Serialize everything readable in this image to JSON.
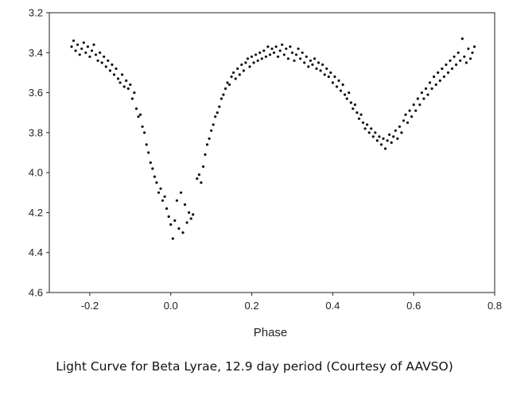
{
  "caption": "Light Curve for Beta Lyrae, 12.9 day period (Courtesy of AAVSO)",
  "chart_data": {
    "type": "scatter",
    "title": "",
    "xlabel": "Phase",
    "ylabel": "",
    "xlim": [
      -0.3,
      0.8
    ],
    "ylim": [
      3.2,
      4.6
    ],
    "y_inverted": true,
    "grid": false,
    "x_ticks": [
      -0.2,
      0.0,
      0.2,
      0.4,
      0.6,
      0.8
    ],
    "x_tick_labels": [
      "-0.2",
      "0.0",
      "0.2",
      "0.4",
      "0.6",
      "0.8"
    ],
    "y_ticks": [
      3.2,
      3.4,
      3.6,
      3.8,
      4.0,
      4.2,
      4.4,
      4.6
    ],
    "y_tick_labels": [
      "3.2",
      "3.4",
      "3.6",
      "3.8",
      "4.0",
      "4.2",
      "4.4",
      "4.6"
    ],
    "marker_color": "#111111",
    "points": [
      [
        -0.245,
        3.37
      ],
      [
        -0.24,
        3.34
      ],
      [
        -0.235,
        3.39
      ],
      [
        -0.23,
        3.36
      ],
      [
        -0.225,
        3.41
      ],
      [
        -0.22,
        3.38
      ],
      [
        -0.215,
        3.35
      ],
      [
        -0.21,
        3.4
      ],
      [
        -0.205,
        3.37
      ],
      [
        -0.2,
        3.42
      ],
      [
        -0.195,
        3.39
      ],
      [
        -0.19,
        3.36
      ],
      [
        -0.185,
        3.41
      ],
      [
        -0.18,
        3.44
      ],
      [
        -0.175,
        3.4
      ],
      [
        -0.17,
        3.45
      ],
      [
        -0.165,
        3.42
      ],
      [
        -0.16,
        3.47
      ],
      [
        -0.155,
        3.44
      ],
      [
        -0.15,
        3.49
      ],
      [
        -0.145,
        3.46
      ],
      [
        -0.14,
        3.51
      ],
      [
        -0.135,
        3.48
      ],
      [
        -0.13,
        3.53
      ],
      [
        -0.125,
        3.55
      ],
      [
        -0.12,
        3.51
      ],
      [
        -0.115,
        3.57
      ],
      [
        -0.11,
        3.54
      ],
      [
        -0.105,
        3.58
      ],
      [
        -0.1,
        3.56
      ],
      [
        -0.095,
        3.63
      ],
      [
        -0.09,
        3.6
      ],
      [
        -0.085,
        3.68
      ],
      [
        -0.08,
        3.72
      ],
      [
        -0.075,
        3.71
      ],
      [
        -0.07,
        3.77
      ],
      [
        -0.065,
        3.8
      ],
      [
        -0.06,
        3.86
      ],
      [
        -0.055,
        3.9
      ],
      [
        -0.05,
        3.95
      ],
      [
        -0.045,
        3.98
      ],
      [
        -0.04,
        4.02
      ],
      [
        -0.035,
        4.05
      ],
      [
        -0.03,
        4.1
      ],
      [
        -0.025,
        4.08
      ],
      [
        -0.02,
        4.14
      ],
      [
        -0.015,
        4.12
      ],
      [
        -0.01,
        4.18
      ],
      [
        -0.005,
        4.22
      ],
      [
        0.0,
        4.26
      ],
      [
        0.005,
        4.33
      ],
      [
        0.01,
        4.24
      ],
      [
        0.015,
        4.14
      ],
      [
        0.02,
        4.28
      ],
      [
        0.025,
        4.1
      ],
      [
        0.03,
        4.3
      ],
      [
        0.035,
        4.16
      ],
      [
        0.04,
        4.25
      ],
      [
        0.045,
        4.2
      ],
      [
        0.05,
        4.23
      ],
      [
        0.055,
        4.21
      ],
      [
        0.065,
        4.03
      ],
      [
        0.07,
        4.01
      ],
      [
        0.075,
        4.05
      ],
      [
        0.08,
        3.97
      ],
      [
        0.085,
        3.91
      ],
      [
        0.09,
        3.86
      ],
      [
        0.095,
        3.83
      ],
      [
        0.1,
        3.79
      ],
      [
        0.105,
        3.76
      ],
      [
        0.11,
        3.72
      ],
      [
        0.115,
        3.7
      ],
      [
        0.12,
        3.67
      ],
      [
        0.125,
        3.63
      ],
      [
        0.13,
        3.61
      ],
      [
        0.135,
        3.58
      ],
      [
        0.14,
        3.55
      ],
      [
        0.145,
        3.56
      ],
      [
        0.15,
        3.52
      ],
      [
        0.155,
        3.5
      ],
      [
        0.16,
        3.53
      ],
      [
        0.165,
        3.48
      ],
      [
        0.17,
        3.51
      ],
      [
        0.175,
        3.46
      ],
      [
        0.18,
        3.49
      ],
      [
        0.185,
        3.45
      ],
      [
        0.19,
        3.43
      ],
      [
        0.195,
        3.47
      ],
      [
        0.2,
        3.42
      ],
      [
        0.205,
        3.45
      ],
      [
        0.21,
        3.41
      ],
      [
        0.215,
        3.44
      ],
      [
        0.22,
        3.4
      ],
      [
        0.225,
        3.43
      ],
      [
        0.23,
        3.39
      ],
      [
        0.235,
        3.42
      ],
      [
        0.24,
        3.37
      ],
      [
        0.245,
        3.41
      ],
      [
        0.25,
        3.38
      ],
      [
        0.255,
        3.4
      ],
      [
        0.26,
        3.37
      ],
      [
        0.265,
        3.42
      ],
      [
        0.27,
        3.39
      ],
      [
        0.275,
        3.36
      ],
      [
        0.28,
        3.41
      ],
      [
        0.285,
        3.38
      ],
      [
        0.29,
        3.43
      ],
      [
        0.295,
        3.37
      ],
      [
        0.3,
        3.4
      ],
      [
        0.305,
        3.44
      ],
      [
        0.31,
        3.41
      ],
      [
        0.315,
        3.38
      ],
      [
        0.32,
        3.43
      ],
      [
        0.325,
        3.4
      ],
      [
        0.33,
        3.45
      ],
      [
        0.335,
        3.42
      ],
      [
        0.34,
        3.47
      ],
      [
        0.345,
        3.44
      ],
      [
        0.35,
        3.46
      ],
      [
        0.355,
        3.43
      ],
      [
        0.36,
        3.48
      ],
      [
        0.365,
        3.45
      ],
      [
        0.37,
        3.49
      ],
      [
        0.375,
        3.46
      ],
      [
        0.38,
        3.51
      ],
      [
        0.385,
        3.48
      ],
      [
        0.39,
        3.52
      ],
      [
        0.395,
        3.5
      ],
      [
        0.4,
        3.55
      ],
      [
        0.405,
        3.52
      ],
      [
        0.41,
        3.57
      ],
      [
        0.415,
        3.54
      ],
      [
        0.42,
        3.59
      ],
      [
        0.425,
        3.56
      ],
      [
        0.43,
        3.61
      ],
      [
        0.435,
        3.63
      ],
      [
        0.44,
        3.6
      ],
      [
        0.445,
        3.65
      ],
      [
        0.45,
        3.68
      ],
      [
        0.455,
        3.66
      ],
      [
        0.46,
        3.7
      ],
      [
        0.465,
        3.73
      ],
      [
        0.47,
        3.71
      ],
      [
        0.475,
        3.75
      ],
      [
        0.48,
        3.78
      ],
      [
        0.485,
        3.76
      ],
      [
        0.49,
        3.8
      ],
      [
        0.495,
        3.78
      ],
      [
        0.5,
        3.82
      ],
      [
        0.505,
        3.8
      ],
      [
        0.51,
        3.84
      ],
      [
        0.515,
        3.82
      ],
      [
        0.52,
        3.86
      ],
      [
        0.525,
        3.83
      ],
      [
        0.53,
        3.88
      ],
      [
        0.535,
        3.84
      ],
      [
        0.54,
        3.81
      ],
      [
        0.545,
        3.85
      ],
      [
        0.55,
        3.82
      ],
      [
        0.555,
        3.79
      ],
      [
        0.56,
        3.83
      ],
      [
        0.565,
        3.77
      ],
      [
        0.57,
        3.8
      ],
      [
        0.575,
        3.74
      ],
      [
        0.58,
        3.71
      ],
      [
        0.585,
        3.75
      ],
      [
        0.59,
        3.69
      ],
      [
        0.595,
        3.72
      ],
      [
        0.6,
        3.66
      ],
      [
        0.605,
        3.69
      ],
      [
        0.61,
        3.63
      ],
      [
        0.615,
        3.66
      ],
      [
        0.62,
        3.6
      ],
      [
        0.625,
        3.63
      ],
      [
        0.63,
        3.58
      ],
      [
        0.635,
        3.61
      ],
      [
        0.64,
        3.55
      ],
      [
        0.645,
        3.58
      ],
      [
        0.65,
        3.52
      ],
      [
        0.655,
        3.56
      ],
      [
        0.66,
        3.5
      ],
      [
        0.665,
        3.54
      ],
      [
        0.67,
        3.48
      ],
      [
        0.675,
        3.52
      ],
      [
        0.68,
        3.46
      ],
      [
        0.685,
        3.5
      ],
      [
        0.69,
        3.44
      ],
      [
        0.695,
        3.48
      ],
      [
        0.7,
        3.42
      ],
      [
        0.705,
        3.46
      ],
      [
        0.71,
        3.4
      ],
      [
        0.715,
        3.44
      ],
      [
        0.72,
        3.33
      ],
      [
        0.725,
        3.42
      ],
      [
        0.73,
        3.45
      ],
      [
        0.735,
        3.38
      ],
      [
        0.74,
        3.43
      ],
      [
        0.745,
        3.4
      ],
      [
        0.75,
        3.37
      ]
    ]
  }
}
